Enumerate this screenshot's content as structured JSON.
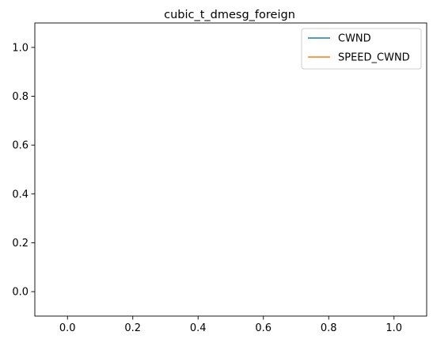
{
  "chart_data": {
    "type": "line",
    "title": "cubic_t_dmesg_foreign",
    "xlabel": "",
    "ylabel": "",
    "xlim": [
      -0.1,
      1.1
    ],
    "ylim": [
      -0.1,
      1.1
    ],
    "x_ticks": [
      0.0,
      0.2,
      0.4,
      0.6,
      0.8,
      1.0
    ],
    "x_tick_labels": [
      "0.0",
      "0.2",
      "0.4",
      "0.6",
      "0.8",
      "1.0"
    ],
    "y_ticks": [
      0.0,
      0.2,
      0.4,
      0.6,
      0.8,
      1.0
    ],
    "y_tick_labels": [
      "0.0",
      "0.2",
      "0.4",
      "0.6",
      "0.8",
      "1.0"
    ],
    "grid": false,
    "legend_position": "top-right",
    "series": [
      {
        "name": "CWND",
        "color": "#1f77b4",
        "x": [],
        "y": []
      },
      {
        "name": "SPEED_CWND",
        "color": "#ff7f0e",
        "x": [],
        "y": []
      }
    ]
  }
}
